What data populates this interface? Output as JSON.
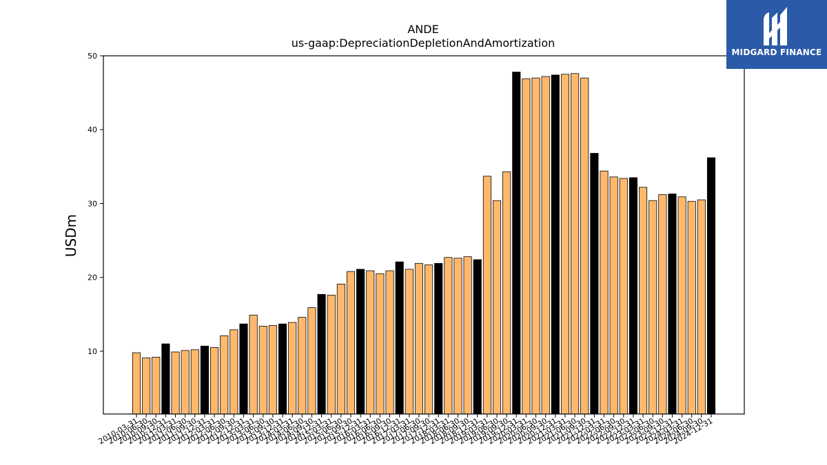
{
  "brand": {
    "name": "MIDGARD FINANCE",
    "bg_color": "#2a5aa8",
    "icon": "midgard-m-logo-icon"
  },
  "chart_data": {
    "type": "bar",
    "title": "ANDE",
    "subtitle": "us-gaap:DepreciationDepletionAndAmortization",
    "xlabel": "",
    "ylabel": "USDm",
    "ylim": [
      1.5,
      50
    ],
    "yticks": [
      10,
      20,
      30,
      40,
      50
    ],
    "grid": false,
    "colors": {
      "quarter": "#ffb86c",
      "year_end": "#000000",
      "edge": "#000000"
    },
    "categories": [
      "2010-03-31",
      "2010-06-30",
      "2010-09-30",
      "2010-12-31",
      "2011-03-31",
      "2011-06-30",
      "2011-09-30",
      "2011-12-31",
      "2012-03-31",
      "2012-06-30",
      "2012-09-30",
      "2012-12-31",
      "2013-03-31",
      "2013-06-30",
      "2013-09-30",
      "2013-12-31",
      "2014-03-31",
      "2014-06-30",
      "2014-09-30",
      "2014-12-31",
      "2015-03-31",
      "2015-06-30",
      "2015-09-30",
      "2015-12-31",
      "2016-03-31",
      "2016-06-30",
      "2016-09-30",
      "2016-12-31",
      "2017-03-31",
      "2017-06-30",
      "2017-09-30",
      "2017-12-31",
      "2018-03-31",
      "2018-06-30",
      "2018-09-30",
      "2018-12-31",
      "2019-03-31",
      "2019-06-30",
      "2019-09-30",
      "2019-12-31",
      "2020-03-31",
      "2020-06-30",
      "2020-09-30",
      "2020-12-31",
      "2021-03-31",
      "2021-06-30",
      "2021-09-30",
      "2021-12-31",
      "2022-03-31",
      "2022-06-30",
      "2022-09-30",
      "2022-12-31",
      "2023-03-31",
      "2023-06-30",
      "2023-09-30",
      "2023-12-31",
      "2024-03-31",
      "2024-06-30",
      "2024-09-30",
      "2024-12-31"
    ],
    "values": [
      9.8,
      9.1,
      9.2,
      11.0,
      9.9,
      10.1,
      10.2,
      10.7,
      10.5,
      12.1,
      12.9,
      13.7,
      14.9,
      13.4,
      13.5,
      13.7,
      13.9,
      14.6,
      15.9,
      17.7,
      17.6,
      19.1,
      20.8,
      21.1,
      20.9,
      20.5,
      20.9,
      22.1,
      21.1,
      21.9,
      21.7,
      21.9,
      22.7,
      22.6,
      22.8,
      22.4,
      33.7,
      30.4,
      34.3,
      47.8,
      46.9,
      47.0,
      47.2,
      47.4,
      47.5,
      47.6,
      47.0,
      36.8,
      34.4,
      33.6,
      33.4,
      33.5,
      32.2,
      30.4,
      31.2,
      31.3,
      30.9,
      30.3,
      30.5,
      36.2
    ],
    "year_end": [
      false,
      false,
      false,
      true,
      false,
      false,
      false,
      true,
      false,
      false,
      false,
      true,
      false,
      false,
      false,
      true,
      false,
      false,
      false,
      true,
      false,
      false,
      false,
      true,
      false,
      false,
      false,
      true,
      false,
      false,
      false,
      true,
      false,
      false,
      false,
      true,
      false,
      false,
      false,
      true,
      false,
      false,
      false,
      true,
      false,
      false,
      false,
      true,
      false,
      false,
      false,
      true,
      false,
      false,
      false,
      true,
      false,
      false,
      false,
      true
    ]
  }
}
